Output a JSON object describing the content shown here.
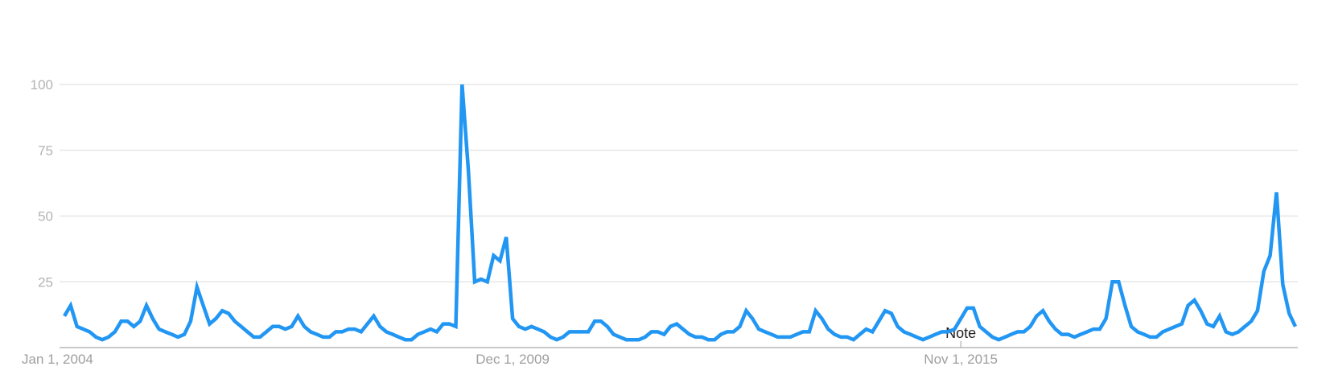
{
  "chart_data": {
    "type": "line",
    "title": "",
    "xlabel": "",
    "ylabel": "",
    "ylim": [
      0,
      100
    ],
    "yticks": [
      "100",
      "75",
      "50",
      "25"
    ],
    "ytick_values": [
      100,
      75,
      50,
      25
    ],
    "xticks": [
      {
        "label": "Jan 1, 2004",
        "date": "2004-01"
      },
      {
        "label": "Dec 1, 2009",
        "date": "2009-12"
      },
      {
        "label": "Nov 1, 2015",
        "date": "2015-11"
      }
    ],
    "annotations": [
      {
        "label": "Note",
        "date": "2015-11"
      }
    ],
    "grid": true,
    "legend": "none",
    "line_color": "#2196f3",
    "frequency": "monthly",
    "values_by_year": {
      "2004": [
        12,
        16,
        8,
        7,
        6,
        4,
        3,
        4,
        6,
        10,
        10,
        8
      ],
      "2005": [
        10,
        16,
        11,
        7,
        6,
        5,
        4,
        5,
        10,
        23,
        16,
        9
      ],
      "2006": [
        11,
        14,
        13,
        10,
        8,
        6,
        4,
        4,
        6,
        8,
        8,
        7
      ],
      "2007": [
        8,
        12,
        8,
        6,
        5,
        4,
        4,
        6,
        6,
        7,
        7,
        6
      ],
      "2008": [
        9,
        12,
        8,
        6,
        5,
        4,
        3,
        3,
        5,
        6,
        7,
        6
      ],
      "2009": [
        9,
        9,
        8,
        100,
        67,
        25,
        26,
        25,
        35,
        33,
        42,
        11
      ],
      "2010": [
        8,
        7,
        8,
        7,
        6,
        4,
        3,
        4,
        6,
        6,
        6,
        6
      ],
      "2011": [
        10,
        10,
        8,
        5,
        4,
        3,
        3,
        3,
        4,
        6,
        6,
        5
      ],
      "2012": [
        8,
        9,
        7,
        5,
        4,
        4,
        3,
        3,
        5,
        6,
        6,
        8
      ],
      "2013": [
        14,
        11,
        7,
        6,
        5,
        4,
        4,
        4,
        5,
        6,
        6,
        14
      ],
      "2014": [
        11,
        7,
        5,
        4,
        4,
        3,
        5,
        7,
        6,
        10,
        14,
        13
      ],
      "2015": [
        8,
        6,
        5,
        4,
        3,
        4,
        5,
        6,
        6,
        7,
        11,
        15
      ],
      "2016": [
        15,
        8,
        6,
        4,
        3,
        4,
        5,
        6,
        6,
        8,
        12,
        14
      ],
      "2017": [
        10,
        7,
        5,
        5,
        4,
        5,
        6,
        7,
        7,
        11,
        25,
        25
      ],
      "2018": [
        16,
        8,
        6,
        5,
        4,
        4,
        6,
        7,
        8,
        9,
        16,
        18
      ],
      "2019": [
        14,
        9,
        8,
        12,
        6,
        5,
        6,
        8,
        10,
        14,
        29,
        35
      ],
      "2020": [
        59,
        24,
        13,
        8
      ]
    }
  }
}
